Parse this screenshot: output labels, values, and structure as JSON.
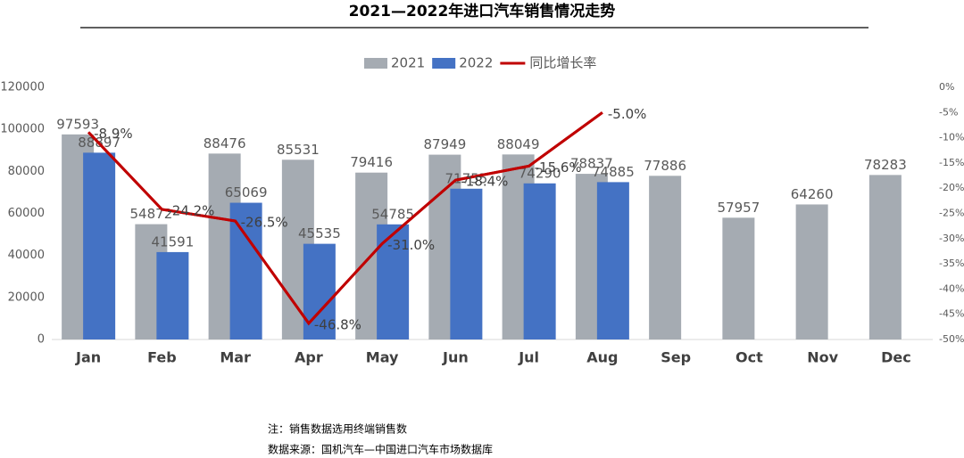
{
  "chart_data": {
    "type": "bar",
    "title": "2021—2022年进口汽车销售情况走势",
    "categories": [
      "Jan",
      "Feb",
      "Mar",
      "Apr",
      "May",
      "Jun",
      "Jul",
      "Aug",
      "Sep",
      "Oct",
      "Nov",
      "Dec"
    ],
    "series": [
      {
        "name": "2021",
        "color": "#a5abb2",
        "values": [
          97593,
          54872,
          88476,
          85531,
          79416,
          87949,
          88049,
          78837,
          77886,
          57957,
          64260,
          78283
        ]
      },
      {
        "name": "2022",
        "color": "#4472c4",
        "values": [
          88897,
          41591,
          65069,
          45535,
          54785,
          71755,
          74290,
          74885,
          null,
          null,
          null,
          null
        ]
      },
      {
        "name": "同比增长率",
        "color": "#c00000",
        "type": "line",
        "axis": "y2",
        "values": [
          -8.9,
          -24.2,
          -26.5,
          -46.8,
          -31.0,
          -18.4,
          -15.6,
          -5.0,
          null,
          null,
          null,
          null
        ],
        "value_labels": [
          "-8.9%",
          "-24.2%",
          "-26.5%",
          "-46.8%",
          "-31.0%",
          "-18.4%",
          "-15.6%",
          "-5.0%",
          null,
          null,
          null,
          null
        ]
      }
    ],
    "ylim": [
      0,
      120000
    ],
    "yticks": [
      0,
      20000,
      40000,
      60000,
      80000,
      100000,
      120000
    ],
    "y2lim": [
      -50,
      0
    ],
    "y2ticks": [
      {
        "value": 0,
        "label": "0%"
      },
      {
        "value": -5,
        "label": "-5%"
      },
      {
        "value": -10,
        "label": "-10%"
      },
      {
        "value": -15,
        "label": "-15%"
      },
      {
        "value": -20,
        "label": "-20%"
      },
      {
        "value": -25,
        "label": "-25%"
      },
      {
        "value": -30,
        "label": "-30%"
      },
      {
        "value": -35,
        "label": "-35%"
      },
      {
        "value": -40,
        "label": "-40%"
      },
      {
        "value": -45,
        "label": "-45%"
      },
      {
        "value": -50,
        "label": "-50%"
      }
    ],
    "legend": "top",
    "notes": [
      "注：销售数据选用终端销售数",
      "数据来源：国机汽车—中国进口汽车市场数据库"
    ]
  }
}
